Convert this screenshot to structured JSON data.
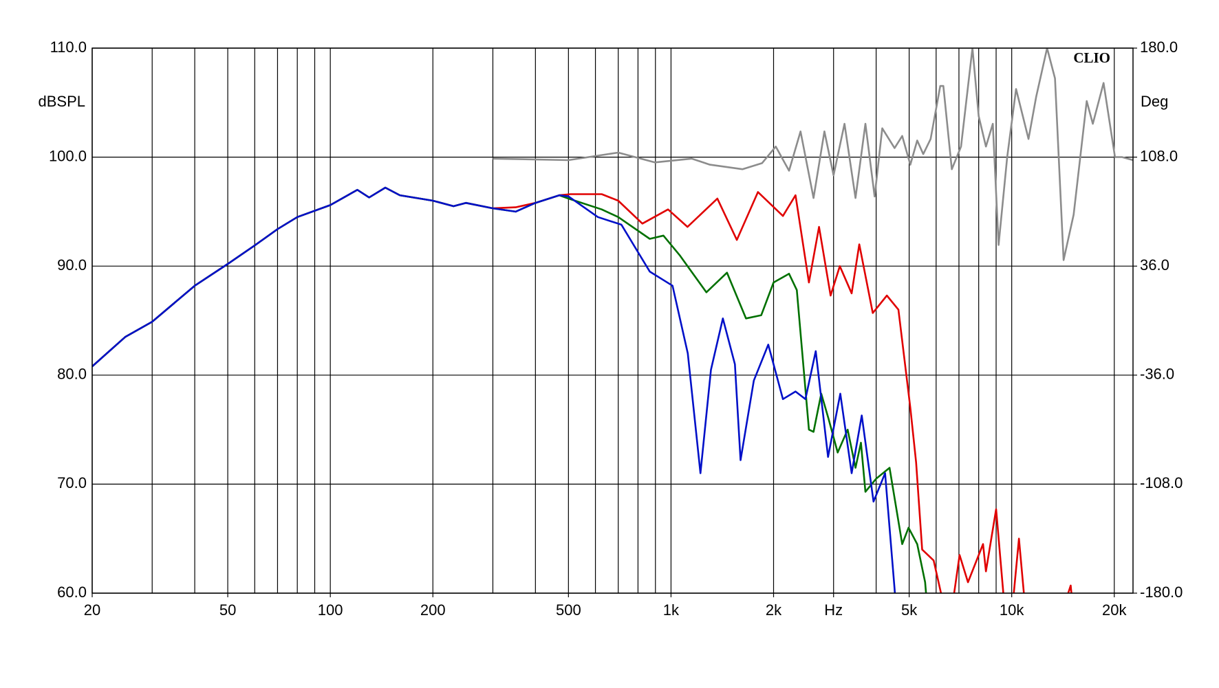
{
  "chart_data": {
    "type": "line",
    "brand": "CLIO",
    "ylabel": "dBSPL",
    "y2label": "Deg",
    "xscale": "log",
    "xlim": [
      20,
      22700
    ],
    "xticks": [
      20,
      50,
      100,
      200,
      500,
      {
        "value": 1000,
        "label": "1k"
      },
      {
        "value": 2000,
        "label": "2k"
      },
      {
        "value": 3000,
        "label": "Hz"
      },
      {
        "value": 5000,
        "label": "5k"
      },
      {
        "value": 10000,
        "label": "10k"
      },
      {
        "value": 20000,
        "label": "20k"
      }
    ],
    "xgrid": [
      20,
      30,
      40,
      50,
      60,
      70,
      80,
      90,
      100,
      200,
      300,
      400,
      500,
      600,
      700,
      800,
      900,
      1000,
      2000,
      3000,
      4000,
      5000,
      6000,
      7000,
      8000,
      9000,
      10000,
      20000
    ],
    "ylim": [
      60,
      110
    ],
    "yticks": [
      {
        "value": 60,
        "label": "60.0"
      },
      {
        "value": 70,
        "label": "70.0"
      },
      {
        "value": 80,
        "label": "80.0"
      },
      {
        "value": 90,
        "label": "90.0"
      },
      {
        "value": 100,
        "label": "100.0"
      },
      {
        "value": 110,
        "label": "110.0"
      }
    ],
    "y2lim": [
      -180,
      180
    ],
    "y2ticks": [
      {
        "value": -180,
        "label": "-180.0"
      },
      {
        "value": -108,
        "label": "-108.0"
      },
      {
        "value": -36,
        "label": "-36.0"
      },
      {
        "value": 36,
        "label": "36.0"
      },
      {
        "value": 108,
        "label": "108.0"
      },
      {
        "value": 180,
        "label": "180.0"
      }
    ],
    "grid": true,
    "series": [
      {
        "color": "#e00000",
        "x": [
          20,
          25,
          30,
          40,
          50,
          60,
          70,
          80,
          100,
          120,
          130,
          145,
          160,
          200,
          230,
          250,
          300,
          350,
          400,
          470,
          507,
          626,
          700,
          824,
          980,
          1118,
          1368,
          1560,
          1800,
          2130,
          2320,
          2540,
          2720,
          2940,
          3130,
          3390,
          3570,
          3910,
          4300,
          4650,
          5040,
          5240,
          5460,
          5900,
          6200,
          6500,
          7030,
          7440,
          8240,
          8400,
          9000,
          9450,
          10000,
          10500,
          11000,
          13000,
          14900,
          15500
        ],
        "values": [
          80.8,
          83.5,
          84.9,
          88.2,
          90.2,
          91.9,
          93.4,
          94.5,
          95.6,
          97.0,
          96.3,
          97.2,
          96.5,
          96.0,
          95.5,
          95.8,
          95.3,
          95.4,
          95.8,
          96.5,
          96.6,
          96.6,
          96.0,
          93.9,
          95.2,
          93.6,
          96.2,
          92.4,
          96.8,
          94.6,
          96.5,
          88.5,
          93.6,
          87.3,
          90.0,
          87.5,
          92.0,
          85.7,
          87.3,
          86.0,
          77,
          72,
          64,
          63,
          60,
          56,
          63.5,
          61,
          64.5,
          62,
          67.7,
          60,
          58,
          65,
          58,
          55,
          60.7,
          55
        ]
      },
      {
        "color": "#007000",
        "x": [
          20,
          25,
          30,
          40,
          50,
          60,
          70,
          80,
          100,
          120,
          130,
          145,
          160,
          200,
          230,
          250,
          300,
          350,
          400,
          470,
          500,
          626,
          700,
          866,
          950,
          1060,
          1270,
          1460,
          1660,
          1840,
          2000,
          2220,
          2340,
          2540,
          2620,
          2760,
          2900,
          3085,
          3300,
          3480,
          3610,
          3720,
          4000,
          4380,
          4770,
          4980,
          5280,
          5570,
          5780
        ],
        "values": [
          80.8,
          83.5,
          84.9,
          88.2,
          90.2,
          91.9,
          93.4,
          94.5,
          95.6,
          97.0,
          96.3,
          97.2,
          96.5,
          96.0,
          95.5,
          95.8,
          95.3,
          95.0,
          95.8,
          96.5,
          96.2,
          95.2,
          94.5,
          92.5,
          92.8,
          91,
          87.6,
          89.4,
          85.2,
          85.5,
          88.5,
          89.3,
          87.8,
          75,
          74.8,
          78.3,
          76,
          72.9,
          75,
          71.5,
          73.8,
          69.3,
          70.5,
          71.5,
          64.5,
          66.0,
          64.5,
          61,
          55
        ]
      },
      {
        "color": "#0010c8",
        "x": [
          20,
          25,
          30,
          40,
          50,
          60,
          70,
          80,
          100,
          120,
          130,
          145,
          160,
          200,
          230,
          250,
          300,
          350,
          400,
          470,
          500,
          610,
          715,
          866,
          1010,
          1120,
          1220,
          1310,
          1420,
          1540,
          1600,
          1750,
          1930,
          2130,
          2320,
          2480,
          2660,
          2890,
          3140,
          3390,
          3630,
          3930,
          4250,
          4530,
          4650
        ],
        "values": [
          80.8,
          83.5,
          84.9,
          88.2,
          90.2,
          91.9,
          93.4,
          94.5,
          95.6,
          97.0,
          96.3,
          97.2,
          96.5,
          96.0,
          95.5,
          95.8,
          95.3,
          95.0,
          95.8,
          96.5,
          96.4,
          94.5,
          93.8,
          89.5,
          88.2,
          82,
          71,
          80.5,
          85.2,
          81,
          72.2,
          79.5,
          82.8,
          77.8,
          78.5,
          77.8,
          82.2,
          72.5,
          78.3,
          71,
          76.3,
          68.4,
          71,
          60.4,
          55
        ]
      },
      {
        "color": "#8c8c8c",
        "axis": "y2",
        "x": [
          300,
          500,
          700,
          896,
          1150,
          1300,
          1620,
          1850,
          2030,
          2220,
          2400,
          2620,
          2820,
          3000,
          3230,
          3480,
          3720,
          3960,
          4170,
          4530,
          4770,
          5040,
          5280,
          5500,
          5780,
          6170,
          6300,
          6670,
          7100,
          7670,
          8000,
          8400,
          8800,
          9150,
          9700,
          10300,
          11200,
          11800,
          12700,
          13400,
          14200,
          15200,
          16600,
          17300,
          18600,
          20100,
          21100,
          22700
        ],
        "values": [
          107,
          106,
          111,
          104.5,
          107,
          103,
          100,
          104,
          115,
          99,
          125,
          81,
          125,
          96,
          130,
          81,
          130,
          82,
          127,
          114,
          122,
          103,
          119,
          110,
          120,
          155,
          155,
          100,
          115,
          180,
          135,
          115,
          130,
          50,
          108,
          153,
          120,
          148,
          180,
          160,
          40,
          70,
          145,
          130,
          157,
          108,
          108,
          106
        ]
      }
    ]
  }
}
